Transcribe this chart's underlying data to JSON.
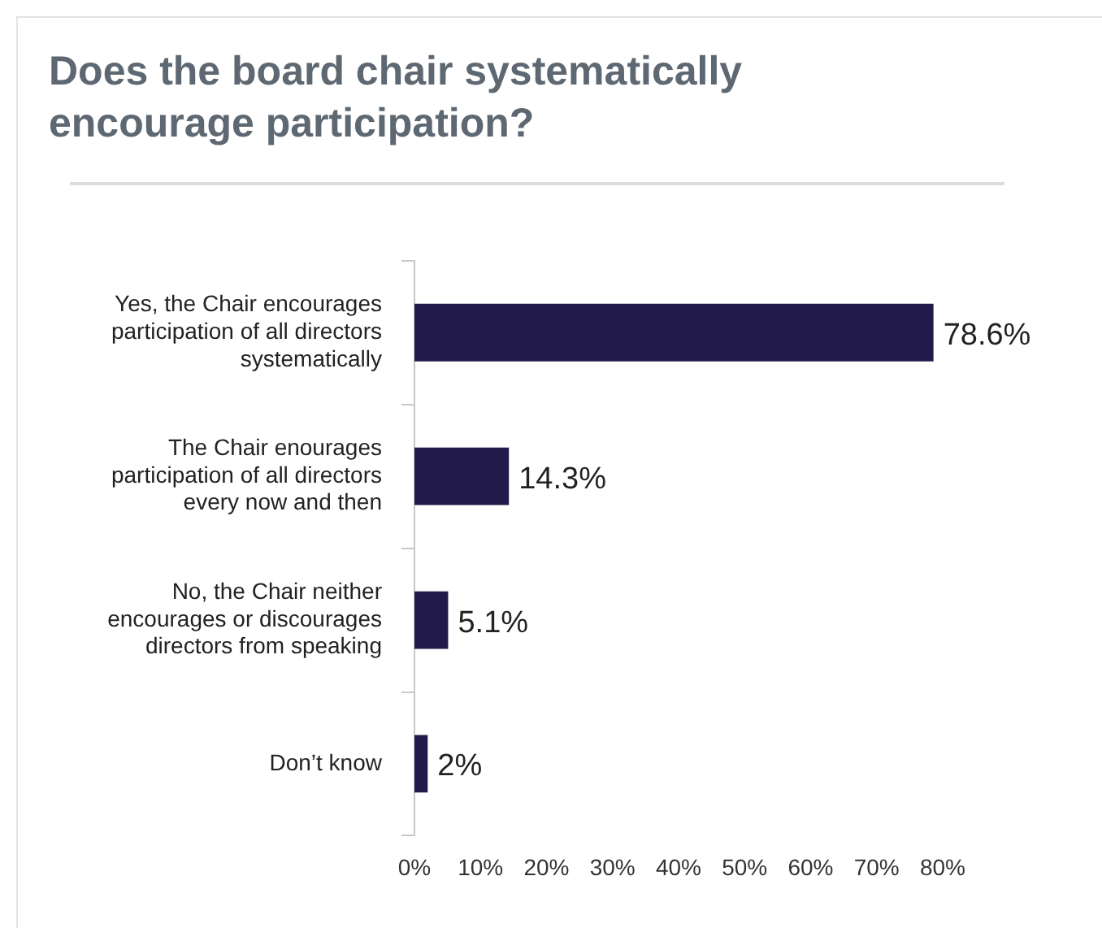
{
  "chart_data": {
    "type": "bar",
    "orientation": "horizontal",
    "title": "Does the board chair systematically encourage participation?",
    "categories": [
      "Yes, the Chair encourages participation of all directors systematically",
      "The Chair enourages participation of all directors every now and then",
      "No, the Chair neither encourages or discourages directors from speaking",
      "Don’t know"
    ],
    "values": [
      78.6,
      14.3,
      5.1,
      2
    ],
    "value_labels": [
      "78.6%",
      "14.3%",
      "5.1%",
      "2%"
    ],
    "color": "#211a4a",
    "xlim": [
      0,
      80
    ],
    "xticks": [
      {
        "value": 0,
        "label": "0%"
      },
      {
        "value": 10,
        "label": "10%"
      },
      {
        "value": 20,
        "label": "20%"
      },
      {
        "value": 30,
        "label": "30%"
      },
      {
        "value": 40,
        "label": "40%"
      },
      {
        "value": 50,
        "label": "50%"
      },
      {
        "value": 60,
        "label": "60%"
      },
      {
        "value": 70,
        "label": "70%"
      },
      {
        "value": 80,
        "label": "80%"
      }
    ],
    "grid": false,
    "legend": false
  }
}
